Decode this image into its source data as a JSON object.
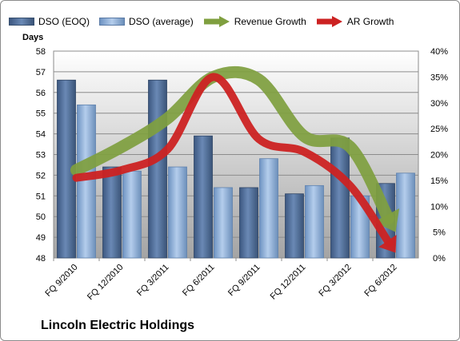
{
  "chart_data": {
    "type": "bar",
    "title": "Lincoln Electric Holdings",
    "ylabel": "Days",
    "categories": [
      "FQ 9/2010",
      "FQ 12/2010",
      "FQ 3/2011",
      "FQ 6/2011",
      "FQ 9/2011",
      "FQ 12/2011",
      "FQ 3/2012",
      "FQ 6/2012"
    ],
    "ylim": [
      48,
      58
    ],
    "y_ticks": [
      "48",
      "49",
      "50",
      "51",
      "52",
      "53",
      "54",
      "55",
      "56",
      "57",
      "58"
    ],
    "y2lim": [
      0,
      40
    ],
    "y2_ticks": [
      "0%",
      "5%",
      "10%",
      "15%",
      "20%",
      "25%",
      "30%",
      "35%",
      "40%"
    ],
    "series": [
      {
        "name": "DSO (EOQ)",
        "type": "bar",
        "axis": "left",
        "values": [
          56.6,
          52.4,
          56.6,
          53.9,
          51.4,
          51.1,
          53.8,
          51.6
        ]
      },
      {
        "name": "DSO (average)",
        "type": "bar",
        "axis": "left",
        "values": [
          55.4,
          52.2,
          52.4,
          51.4,
          52.8,
          51.5,
          51.0,
          52.1
        ]
      },
      {
        "name": "Revenue Growth",
        "type": "arrow-line",
        "axis": "right",
        "values": [
          17,
          21.5,
          27,
          35,
          34.5,
          23.5,
          21.5,
          5
        ]
      },
      {
        "name": "AR Growth",
        "type": "arrow-line",
        "axis": "right",
        "values": [
          15.5,
          17,
          21,
          35,
          23,
          20.5,
          14,
          1
        ]
      }
    ],
    "grid": true,
    "legend": "top",
    "colors": {
      "dso_eoq": "#4f6e9a",
      "dso_average": "#8fb2dd",
      "revenue_growth": "#7f9f3f",
      "ar_growth": "#cc2222"
    }
  }
}
